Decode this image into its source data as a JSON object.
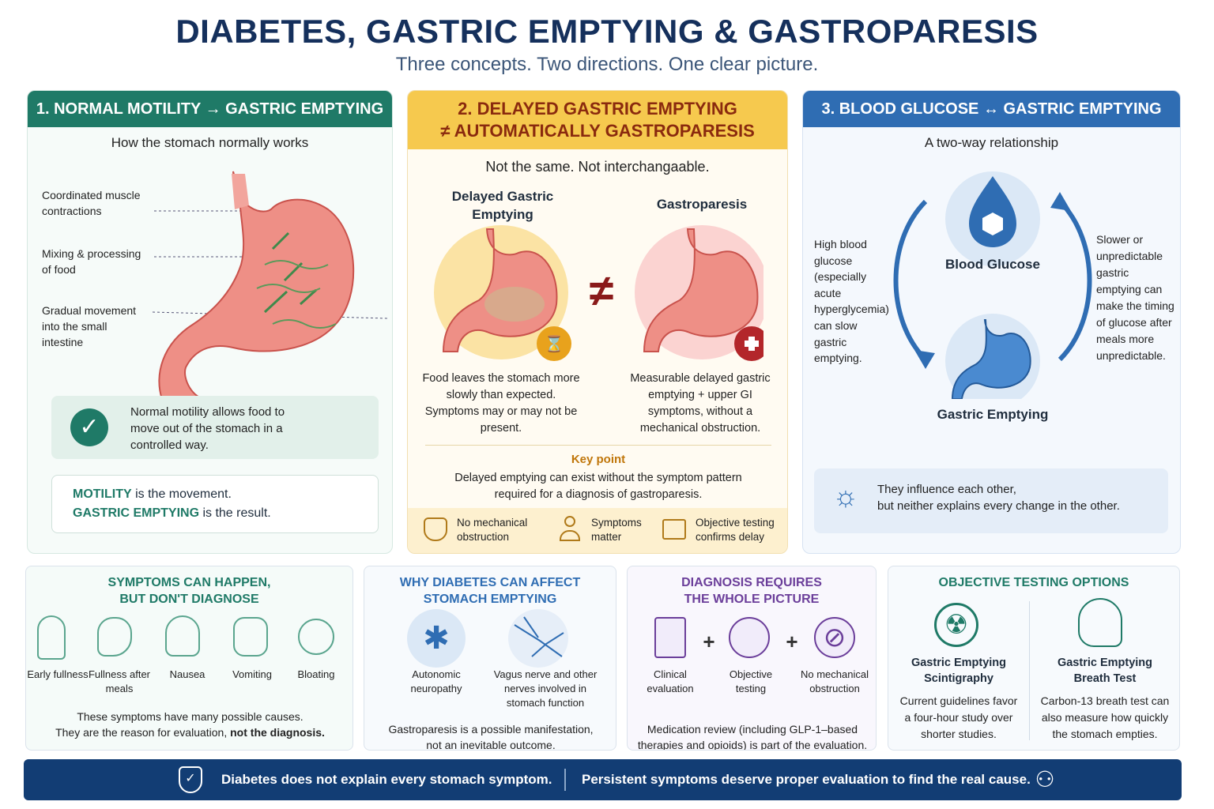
{
  "header": {
    "title": "DIABETES, GASTRIC EMPTYING & GASTROPARESIS",
    "subtitle": "Three concepts. Two directions. One clear picture."
  },
  "panel1": {
    "heading": "1. NORMAL MOTILITY → GASTRIC EMPTYING",
    "subheading": "How the stomach normally works",
    "labels": [
      "Coordinated muscle contractions",
      "Mixing & processing of food",
      "Gradual movement into the small intestine"
    ],
    "check_text": "Normal motility allows food to move out of the stomach in a controlled way.",
    "def_term1": "MOTILITY",
    "def_rest1": " is the movement.",
    "def_term2": "GASTRIC EMPTYING",
    "def_rest2": " is the result."
  },
  "panel2": {
    "heading_line1": "2. DELAYED GASTRIC EMPTYING",
    "heading_line2": "≠ AUTOMATICALLY GASTROPARESIS",
    "subheading": "Not the same. Not interchangaable.",
    "left_title": "Delayed Gastric Emptying",
    "right_title": "Gastroparesis",
    "not_equal": "≠",
    "left_desc": "Food leaves the stomach more slowly than expected. Symptoms may or may not be present.",
    "right_desc": "Measurable delayed gastric emptying + upper GI symptoms, without a mechanical obstruction.",
    "key_label": "Key point",
    "key_text": "Delayed emptying can exist without the symptom pattern required for a diagnosis of gastroparesis.",
    "footer_items": [
      "No mechanical obstruction",
      "Symptoms matter",
      "Objective testing confirms delay"
    ]
  },
  "panel3": {
    "heading": "3. BLOOD GLUCOSE ↔ GASTRIC EMPTYING",
    "subheading": "A two-way relationship",
    "node_top": "Blood Glucose",
    "node_bottom": "Gastric Emptying",
    "left_note": "High blood glucose (especially acute hyperglycemia) can slow gastric emptying.",
    "right_note": "Slower or unpredictable gastric emptying can make the timing of glucose after meals more unpredictable.",
    "bulb_text_line1": "They influence each other,",
    "bulb_text_line2": "but neither explains every change in the other."
  },
  "card_symptoms": {
    "heading_line1": "SYMPTOMS CAN HAPPEN,",
    "heading_line2": "BUT DON'T DIAGNOSE",
    "items": [
      "Early fullness",
      "Fullness after meals",
      "Nausea",
      "Vomiting",
      "Bloating"
    ],
    "note_line1": "These symptoms have many possible causes.",
    "note_line2_a": "They are the reason for evaluation, ",
    "note_line2_b": "not the diagnosis."
  },
  "card_why": {
    "heading_line1": "WHY DIABETES CAN AFFECT",
    "heading_line2": "STOMACH EMPTYING",
    "items": [
      "Autonomic neuropathy",
      "Vagus nerve and other nerves involved in stomach function"
    ],
    "note": "Gastroparesis is a possible manifestation, not an inevitable outcome."
  },
  "card_diag": {
    "heading_line1": "DIAGNOSIS REQUIRES",
    "heading_line2": "THE WHOLE PICTURE",
    "items": [
      "Clinical evaluation",
      "Objective testing",
      "No mechanical obstruction"
    ],
    "plus": "+",
    "note": "Medication review (including GLP-1–based therapies and opioids) is part of the evaluation."
  },
  "card_tests": {
    "heading": "OBJECTIVE TESTING OPTIONS",
    "left_title": "Gastric Emptying Scintigraphy",
    "left_desc": "Current guidelines favor a four-hour study over shorter studies.",
    "right_title": "Gastric Emptying Breath Test",
    "right_desc": "Carbon-13 breath test can also measure how quickly the stomach empties."
  },
  "footer": {
    "left": "Diabetes does not explain every stomach symptom.",
    "right": "Persistent symptoms deserve proper evaluation to find the real cause."
  },
  "colors": {
    "green": "#1f7a67",
    "amber": "#f6c94e",
    "blue": "#2f6db3",
    "navy": "#123d74"
  }
}
